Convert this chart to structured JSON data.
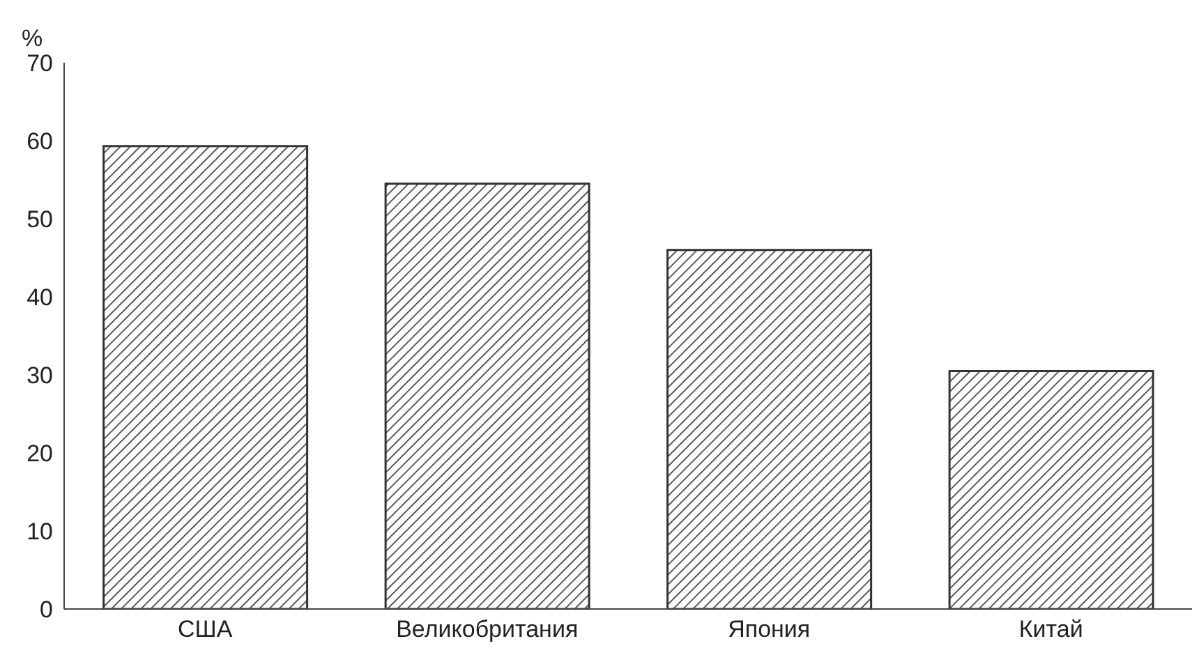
{
  "chart_data": {
    "type": "bar",
    "ylabel": "%",
    "categories": [
      "США",
      "Великобритания",
      "Япония",
      "Китай"
    ],
    "values": [
      59.3,
      54.5,
      46.0,
      30.5
    ],
    "color": "#333333",
    "ylim": [
      0,
      70
    ],
    "yticks": [
      0,
      10,
      20,
      30,
      40,
      50,
      60,
      70
    ],
    "grid": false
  }
}
